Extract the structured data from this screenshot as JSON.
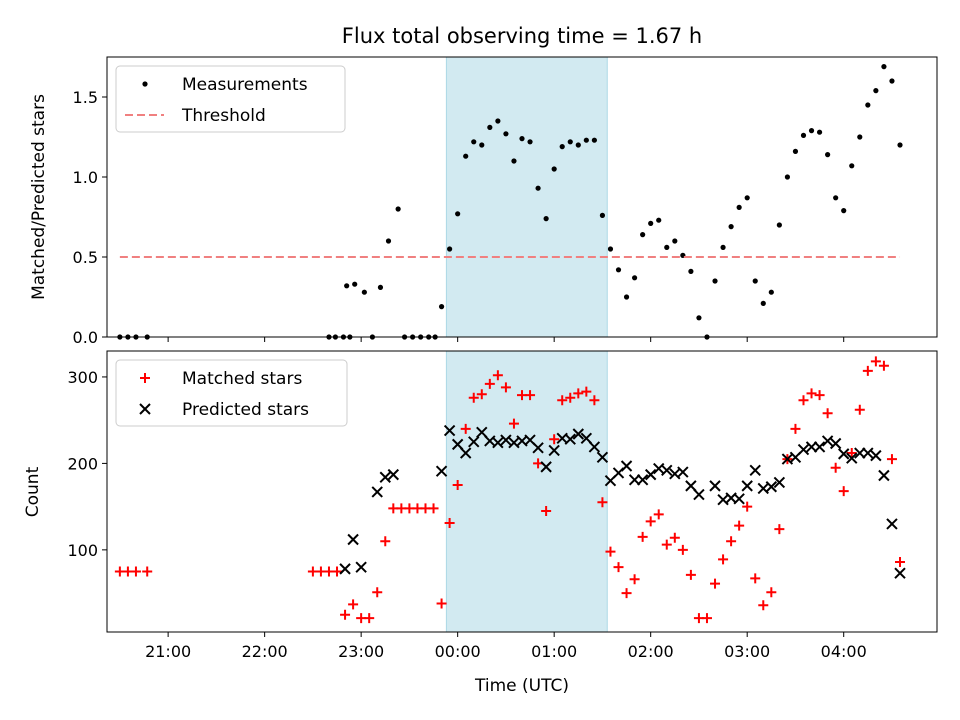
{
  "figure": {
    "title": "Flux total observing time = 1.67 h",
    "shade_color": "#add8e6",
    "xlabel": "Time (UTC)"
  },
  "chart_data": [
    {
      "type": "scatter",
      "panel": "top",
      "title": "Flux total observing time = 1.67 h",
      "ylabel": "Matched/Predicted stars",
      "xlabel": "",
      "xlim": [
        "20:22",
        "04:58"
      ],
      "ylim": [
        0,
        1.75
      ],
      "yticks": [
        "0.0",
        "0.5",
        "1.0",
        "1.5"
      ],
      "legend_location": "top-left",
      "shaded_interval": [
        "23:53",
        "01:33"
      ],
      "series": [
        {
          "name": "Measurements",
          "marker": "dot",
          "color": "#000000",
          "points": [
            [
              "20:30",
              0
            ],
            [
              "20:35",
              0
            ],
            [
              "20:40",
              0
            ],
            [
              "20:47",
              0
            ],
            [
              "22:40",
              0
            ],
            [
              "22:44",
              0
            ],
            [
              "22:49",
              0
            ],
            [
              "22:53",
              0
            ],
            [
              "22:51",
              0.32
            ],
            [
              "22:56",
              0.33
            ],
            [
              "23:02",
              0.28
            ],
            [
              "23:07",
              0
            ],
            [
              "23:12",
              0.31
            ],
            [
              "23:17",
              0.6
            ],
            [
              "23:23",
              0.8
            ],
            [
              "23:27",
              0
            ],
            [
              "23:32",
              0
            ],
            [
              "23:37",
              0
            ],
            [
              "23:42",
              0
            ],
            [
              "23:46",
              0
            ],
            [
              "23:50",
              0.19
            ],
            [
              "23:55",
              0.55
            ],
            [
              "00:00",
              0.77
            ],
            [
              "00:05",
              1.13
            ],
            [
              "00:10",
              1.22
            ],
            [
              "00:15",
              1.2
            ],
            [
              "00:20",
              1.31
            ],
            [
              "00:25",
              1.35
            ],
            [
              "00:30",
              1.27
            ],
            [
              "00:35",
              1.1
            ],
            [
              "00:40",
              1.24
            ],
            [
              "00:45",
              1.22
            ],
            [
              "00:50",
              0.93
            ],
            [
              "00:55",
              0.74
            ],
            [
              "01:00",
              1.05
            ],
            [
              "01:05",
              1.19
            ],
            [
              "01:10",
              1.22
            ],
            [
              "01:15",
              1.2
            ],
            [
              "01:20",
              1.23
            ],
            [
              "01:25",
              1.23
            ],
            [
              "01:30",
              0.76
            ],
            [
              "01:35",
              0.55
            ],
            [
              "01:40",
              0.42
            ],
            [
              "01:45",
              0.25
            ],
            [
              "01:50",
              0.37
            ],
            [
              "01:55",
              0.64
            ],
            [
              "02:00",
              0.71
            ],
            [
              "02:05",
              0.73
            ],
            [
              "02:10",
              0.56
            ],
            [
              "02:15",
              0.6
            ],
            [
              "02:20",
              0.51
            ],
            [
              "02:25",
              0.41
            ],
            [
              "02:30",
              0.12
            ],
            [
              "02:35",
              0
            ],
            [
              "02:40",
              0.35
            ],
            [
              "02:45",
              0.56
            ],
            [
              "02:50",
              0.69
            ],
            [
              "02:55",
              0.81
            ],
            [
              "03:00",
              0.87
            ],
            [
              "03:05",
              0.35
            ],
            [
              "03:10",
              0.21
            ],
            [
              "03:15",
              0.28
            ],
            [
              "03:20",
              0.7
            ],
            [
              "03:25",
              1.0
            ],
            [
              "03:30",
              1.16
            ],
            [
              "03:35",
              1.26
            ],
            [
              "03:40",
              1.29
            ],
            [
              "03:45",
              1.28
            ],
            [
              "03:50",
              1.14
            ],
            [
              "03:55",
              0.87
            ],
            [
              "04:00",
              0.79
            ],
            [
              "04:05",
              1.07
            ],
            [
              "04:10",
              1.25
            ],
            [
              "04:15",
              1.45
            ],
            [
              "04:20",
              1.54
            ],
            [
              "04:25",
              1.69
            ],
            [
              "04:30",
              1.6
            ],
            [
              "04:35",
              1.2
            ]
          ]
        },
        {
          "name": "Threshold",
          "marker": "dashed-line",
          "color": "#f08080",
          "points": [
            [
              "20:30",
              0.5
            ],
            [
              "04:35",
              0.5
            ]
          ]
        }
      ]
    },
    {
      "type": "scatter",
      "panel": "bottom",
      "ylabel": "Count",
      "xlabel": "Time (UTC)",
      "xlim": [
        "20:22",
        "04:58"
      ],
      "ylim": [
        5,
        330
      ],
      "yticks": [
        "100",
        "200",
        "300"
      ],
      "xticks": [
        "21:00",
        "22:00",
        "23:00",
        "00:00",
        "01:00",
        "02:00",
        "03:00",
        "04:00"
      ],
      "legend_location": "top-left",
      "shaded_interval": [
        "23:53",
        "01:33"
      ],
      "series": [
        {
          "name": "Matched stars",
          "marker": "plus",
          "color": "#ff0000",
          "points": [
            [
              "20:30",
              75
            ],
            [
              "20:35",
              75
            ],
            [
              "20:40",
              75
            ],
            [
              "20:47",
              75
            ],
            [
              "22:30",
              75
            ],
            [
              "22:35",
              75
            ],
            [
              "22:40",
              75
            ],
            [
              "22:45",
              75
            ],
            [
              "22:50",
              25
            ],
            [
              "22:55",
              37
            ],
            [
              "23:00",
              21
            ],
            [
              "23:05",
              21
            ],
            [
              "23:10",
              51
            ],
            [
              "23:15",
              110
            ],
            [
              "23:20",
              148
            ],
            [
              "23:25",
              148
            ],
            [
              "23:30",
              148
            ],
            [
              "23:35",
              148
            ],
            [
              "23:40",
              148
            ],
            [
              "23:45",
              148
            ],
            [
              "23:50",
              38
            ],
            [
              "23:55",
              131
            ],
            [
              "00:00",
              175
            ],
            [
              "00:05",
              240
            ],
            [
              "00:10",
              276
            ],
            [
              "00:15",
              280
            ],
            [
              "00:20",
              292
            ],
            [
              "00:25",
              302
            ],
            [
              "00:30",
              288
            ],
            [
              "00:35",
              246
            ],
            [
              "00:40",
              279
            ],
            [
              "00:45",
              279
            ],
            [
              "00:50",
              200
            ],
            [
              "00:55",
              145
            ],
            [
              "01:00",
              228
            ],
            [
              "01:05",
              273
            ],
            [
              "01:10",
              276
            ],
            [
              "01:15",
              281
            ],
            [
              "01:20",
              283
            ],
            [
              "01:25",
              273
            ],
            [
              "01:30",
              155
            ],
            [
              "01:35",
              98
            ],
            [
              "01:40",
              80
            ],
            [
              "01:45",
              50
            ],
            [
              "01:50",
              66
            ],
            [
              "01:55",
              115
            ],
            [
              "02:00",
              133
            ],
            [
              "02:05",
              141
            ],
            [
              "02:10",
              106
            ],
            [
              "02:15",
              114
            ],
            [
              "02:20",
              100
            ],
            [
              "02:25",
              71
            ],
            [
              "02:30",
              21
            ],
            [
              "02:35",
              21
            ],
            [
              "02:40",
              61
            ],
            [
              "02:45",
              89
            ],
            [
              "02:50",
              110
            ],
            [
              "02:55",
              128
            ],
            [
              "03:00",
              150
            ],
            [
              "03:05",
              67
            ],
            [
              "03:10",
              36
            ],
            [
              "03:15",
              51
            ],
            [
              "03:20",
              124
            ],
            [
              "03:25",
              205
            ],
            [
              "03:30",
              240
            ],
            [
              "03:35",
              273
            ],
            [
              "03:40",
              281
            ],
            [
              "03:45",
              279
            ],
            [
              "03:50",
              258
            ],
            [
              "03:55",
              195
            ],
            [
              "04:00",
              168
            ],
            [
              "04:05",
              212
            ],
            [
              "04:10",
              262
            ],
            [
              "04:15",
              307
            ],
            [
              "04:20",
              318
            ],
            [
              "04:25",
              313
            ],
            [
              "04:30",
              205
            ],
            [
              "04:35",
              86
            ]
          ]
        },
        {
          "name": "Predicted stars",
          "marker": "x",
          "color": "#000000",
          "points": [
            [
              "22:50",
              78
            ],
            [
              "22:55",
              112
            ],
            [
              "23:00",
              80
            ],
            [
              "23:10",
              167
            ],
            [
              "23:15",
              184
            ],
            [
              "23:20",
              187
            ],
            [
              "23:50",
              191
            ],
            [
              "23:55",
              238
            ],
            [
              "00:00",
              222
            ],
            [
              "00:05",
              212
            ],
            [
              "00:10",
              225
            ],
            [
              "00:15",
              236
            ],
            [
              "00:20",
              226
            ],
            [
              "00:25",
              224
            ],
            [
              "00:30",
              227
            ],
            [
              "00:35",
              224
            ],
            [
              "00:40",
              226
            ],
            [
              "00:45",
              227
            ],
            [
              "00:50",
              218
            ],
            [
              "00:55",
              196
            ],
            [
              "01:00",
              215
            ],
            [
              "01:05",
              229
            ],
            [
              "01:10",
              228
            ],
            [
              "01:15",
              234
            ],
            [
              "01:20",
              229
            ],
            [
              "01:25",
              219
            ],
            [
              "01:30",
              207
            ],
            [
              "01:35",
              180
            ],
            [
              "01:40",
              189
            ],
            [
              "01:45",
              197
            ],
            [
              "01:50",
              181
            ],
            [
              "01:55",
              181
            ],
            [
              "02:00",
              187
            ],
            [
              "02:05",
              194
            ],
            [
              "02:10",
              192
            ],
            [
              "02:15",
              188
            ],
            [
              "02:20",
              190
            ],
            [
              "02:25",
              174
            ],
            [
              "02:30",
              164
            ],
            [
              "02:40",
              174
            ],
            [
              "02:45",
              158
            ],
            [
              "02:50",
              160
            ],
            [
              "02:55",
              159
            ],
            [
              "03:00",
              174
            ],
            [
              "03:05",
              192
            ],
            [
              "03:10",
              171
            ],
            [
              "03:15",
              173
            ],
            [
              "03:20",
              178
            ],
            [
              "03:25",
              205
            ],
            [
              "03:30",
              207
            ],
            [
              "03:35",
              216
            ],
            [
              "03:40",
              219
            ],
            [
              "03:45",
              219
            ],
            [
              "03:50",
              226
            ],
            [
              "03:55",
              223
            ],
            [
              "04:00",
              211
            ],
            [
              "04:05",
              206
            ],
            [
              "04:10",
              212
            ],
            [
              "04:15",
              212
            ],
            [
              "04:20",
              209
            ],
            [
              "04:25",
              186
            ],
            [
              "04:30",
              130
            ],
            [
              "04:35",
              73
            ]
          ]
        }
      ]
    }
  ]
}
